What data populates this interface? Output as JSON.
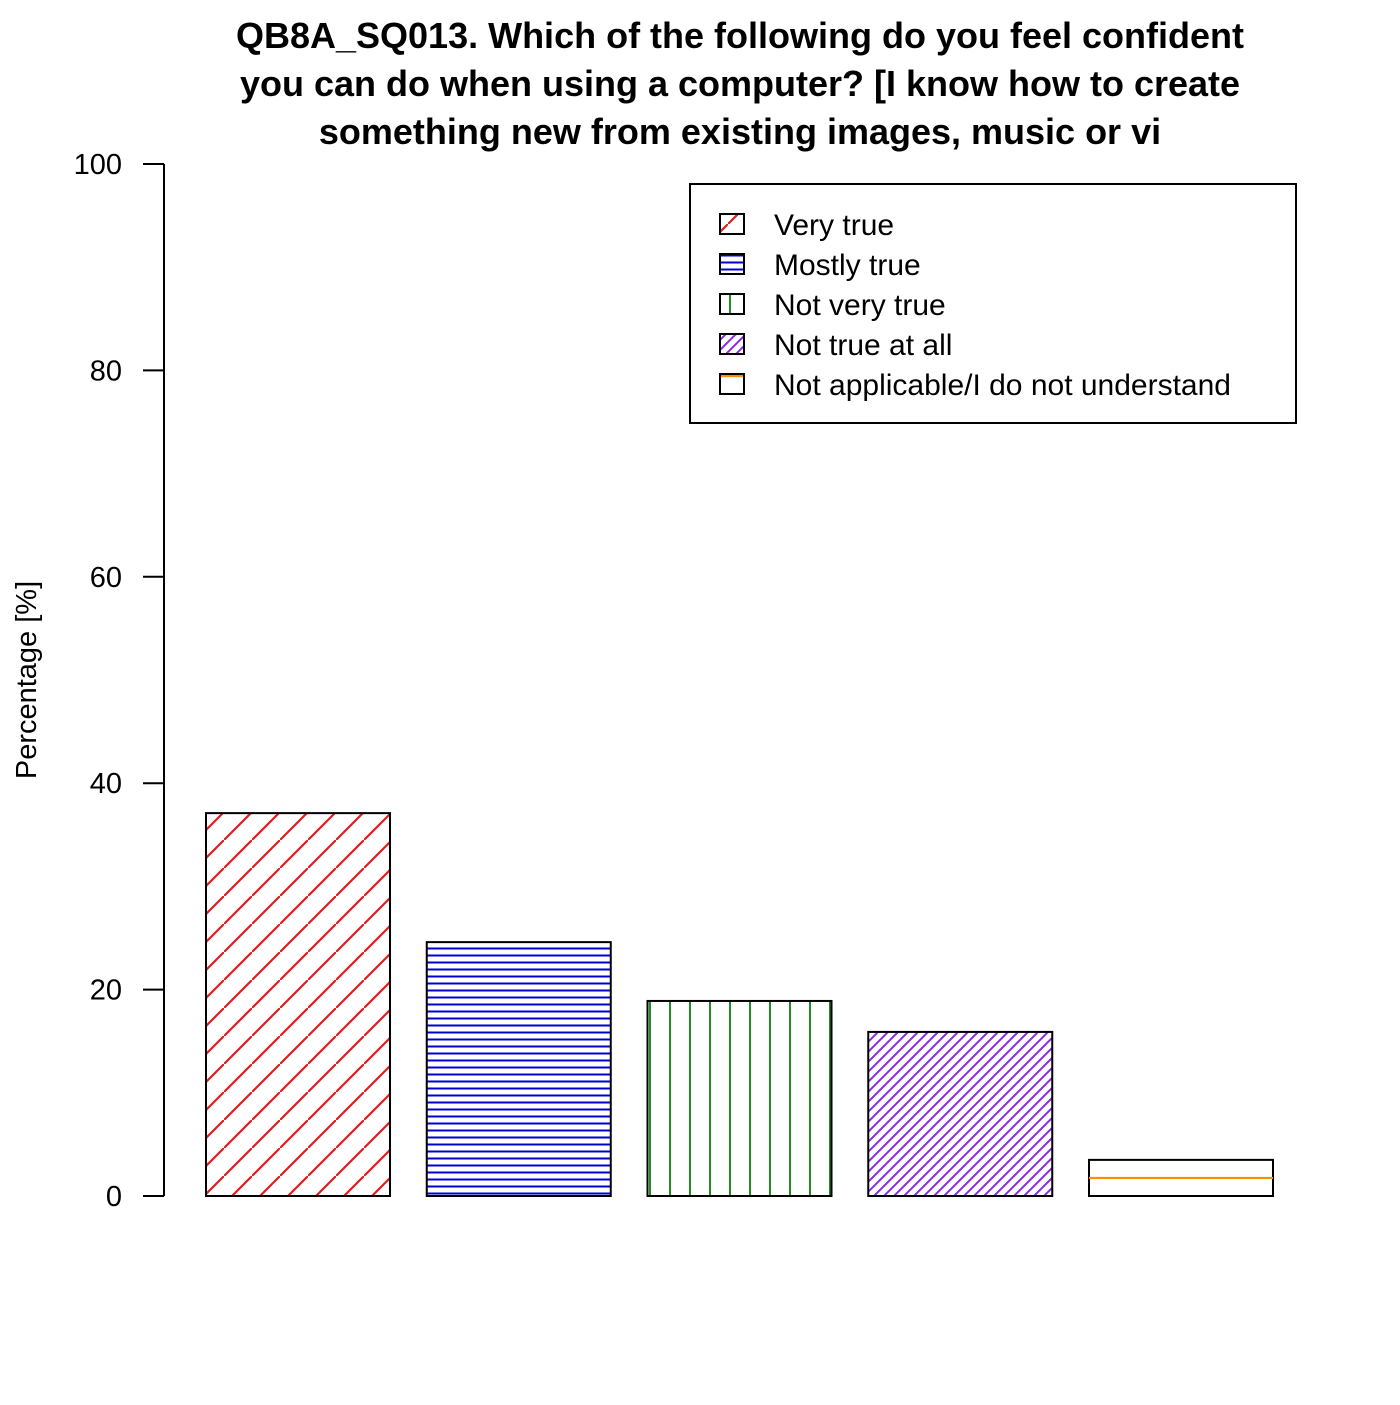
{
  "chart_data": {
    "type": "bar",
    "title_lines": [
      "QB8A_SQ013. Which of the following do you feel confident",
      "you can do when using a computer? [I know how to create",
      "something new from existing images, music or vi"
    ],
    "xlabel": "",
    "ylabel": "Percentage [%]",
    "ylim": [
      0,
      100
    ],
    "yticks": [
      0,
      20,
      40,
      60,
      80,
      100
    ],
    "categories": [
      "Very true",
      "Mostly true",
      "Not very true",
      "Not true at all",
      "Not applicable/I do not understand"
    ],
    "values": [
      37.1,
      24.6,
      18.9,
      15.9,
      3.5
    ],
    "colors": [
      "#e41a1c",
      "#0000cc",
      "#228b22",
      "#8a2be2",
      "#ff8c00"
    ],
    "hatch": [
      "diagonal-45",
      "horizontal",
      "vertical",
      "diagonal-45-dense",
      "horizontal-single"
    ],
    "legend_position": "top-right",
    "grid": false
  }
}
